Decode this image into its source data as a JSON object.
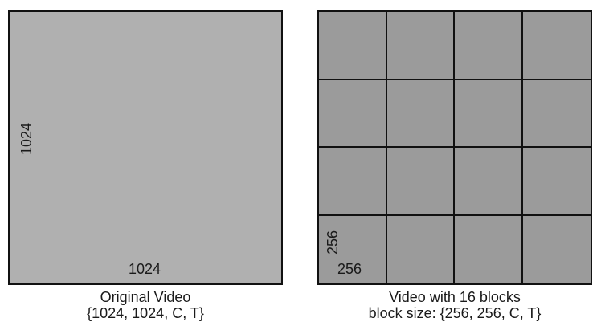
{
  "original": {
    "width_label": "1024",
    "height_label": "1024",
    "caption_line1": "Original Video",
    "caption_line2": "{1024, 1024, C, T}",
    "fill": "#b0b0b0"
  },
  "blocked": {
    "grid_rows": 4,
    "grid_cols": 4,
    "block_width_label": "256",
    "block_height_label": "256",
    "caption_line1": "Video with 16 blocks",
    "caption_line2": "block size: {256, 256, C, T}",
    "fill": "#9b9b9b"
  },
  "border_color": "#111111"
}
